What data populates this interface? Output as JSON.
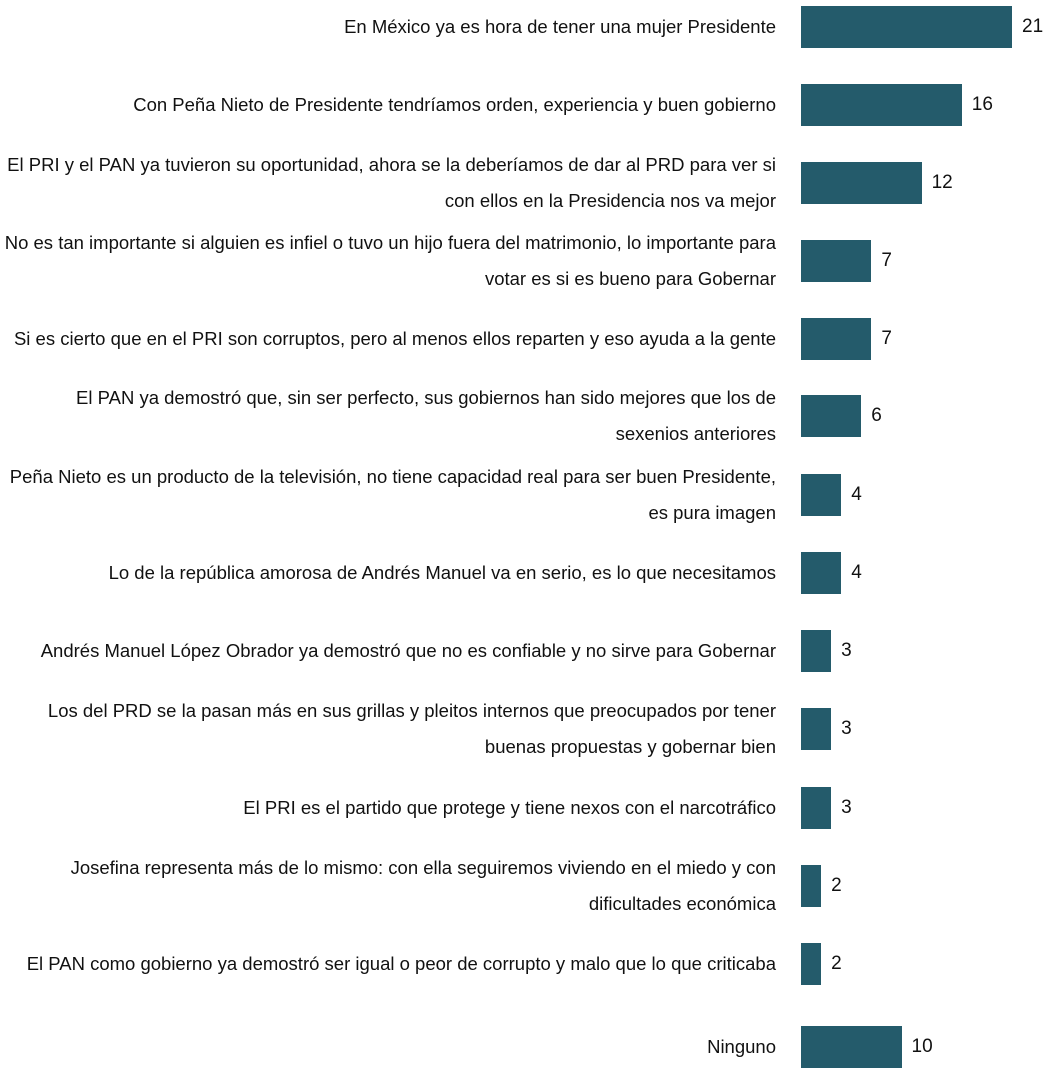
{
  "chart_data": {
    "type": "bar",
    "orientation": "horizontal",
    "color": "#245b6b",
    "categories": [
      "En México ya es hora de tener una mujer Presidente",
      "Con Peña Nieto de Presidente tendríamos orden, experiencia y buen gobierno",
      "El PRI y el PAN ya tuvieron su oportunidad, ahora se la deberíamos de dar al PRD para ver si con ellos en la Presidencia nos va mejor",
      "No es tan importante si alguien es infiel o tuvo un hijo fuera del matrimonio, lo importante para votar es si es bueno para Gobernar",
      "Si es cierto que en el PRI son corruptos, pero al menos ellos reparten y eso ayuda a la gente",
      "El PAN ya demostró que, sin ser perfecto, sus gobiernos han sido mejores que los de sexenios anteriores",
      "Peña Nieto es un producto de la televisión, no tiene capacidad real para ser buen Presidente, es pura imagen",
      "Lo de la república amorosa de Andrés Manuel va en serio, es lo que necesitamos",
      "Andrés Manuel López Obrador ya demostró que no es confiable y no sirve para Gobernar",
      "Los del PRD se la pasan más en sus grillas y pleitos  internos que preocupados por tener buenas propuestas y gobernar bien",
      "El PRI es el partido que protege y tiene nexos con el narcotráfico",
      "Josefina representa más de lo mismo: con ella seguiremos viviendo en el miedo y con dificultades económica",
      "El PAN como gobierno ya demostró ser igual o peor de corrupto y malo que lo que criticaba",
      "Ninguno"
    ],
    "values": [
      21,
      16,
      12,
      7,
      7,
      6,
      4,
      4,
      3,
      3,
      3,
      2,
      2,
      10
    ]
  }
}
